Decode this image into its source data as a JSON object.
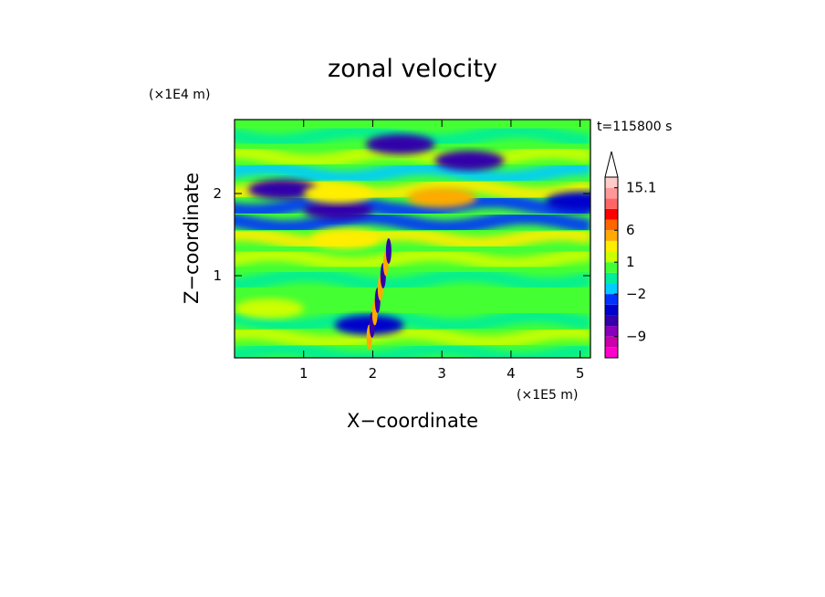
{
  "chart_data": {
    "type": "heatmap",
    "title": "zonal velocity",
    "xlabel": "X−coordinate",
    "ylabel": "Z−coordinate",
    "x_scale_label": "(×1E5 m)",
    "y_scale_label": "(×1E4 m)",
    "time_label": "t=115800 s",
    "xlim": [
      0,
      5.15
    ],
    "ylim": [
      0,
      2.9
    ],
    "x_ticks": [
      1,
      2,
      3,
      4,
      5
    ],
    "y_ticks": [
      1,
      2
    ],
    "x_tick_labels": [
      "1",
      "2",
      "3",
      "4",
      "5"
    ],
    "y_tick_labels": [
      "1",
      "2"
    ],
    "colorbar": {
      "levels": [
        -14,
        -11.5,
        -9,
        -7,
        -5,
        -3.5,
        -2,
        -1,
        0,
        1,
        2,
        4,
        6,
        8.5,
        11,
        13,
        15.1
      ],
      "colors": [
        "#ff00cc",
        "#cc00aa",
        "#8800bb",
        "#3300aa",
        "#0000cc",
        "#0033ff",
        "#00ccff",
        "#00ee99",
        "#44ff33",
        "#ccff00",
        "#ffee00",
        "#ffaa00",
        "#ff6600",
        "#ff0000",
        "#ff6666",
        "#ff9999",
        "#ffcccc"
      ],
      "tick_labels": [
        "15.1",
        "6",
        "1",
        "−2",
        "−9"
      ],
      "tick_values": [
        15.1,
        6,
        1,
        -2,
        -9
      ]
    },
    "features": [
      {
        "x": 3.4,
        "z": 2.4,
        "value": -7
      },
      {
        "x": 2.4,
        "z": 2.6,
        "value": -6
      },
      {
        "x": 0.7,
        "z": 2.05,
        "value": -6
      },
      {
        "x": 1.5,
        "z": 1.8,
        "value": -7
      },
      {
        "x": 5.0,
        "z": 1.9,
        "value": -4
      },
      {
        "x": 3.0,
        "z": 1.95,
        "value": 4
      },
      {
        "x": 1.5,
        "z": 2.0,
        "value": 3
      },
      {
        "x": 1.6,
        "z": 1.45,
        "value": 3
      },
      {
        "x": 1.95,
        "z": 0.4,
        "value": -5
      },
      {
        "x": 0.5,
        "z": 0.6,
        "value": 1
      }
    ]
  }
}
